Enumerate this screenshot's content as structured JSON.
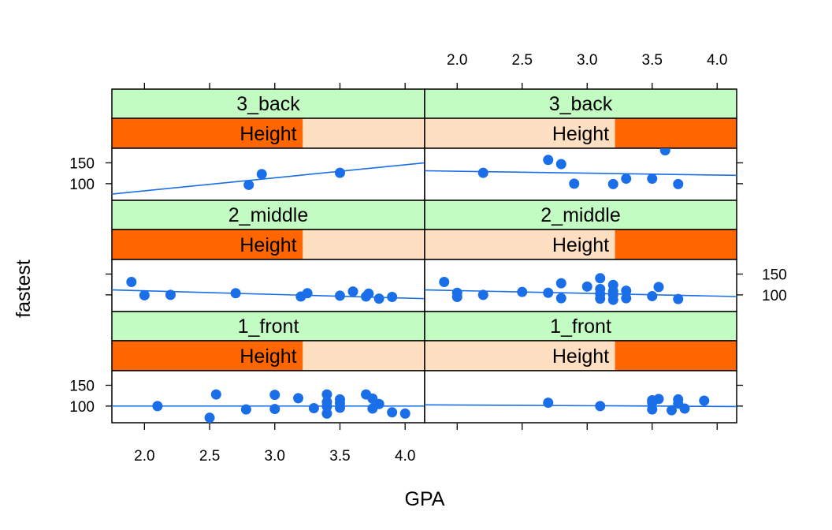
{
  "chart_data": {
    "type": "scatter",
    "xlabel": "GPA",
    "ylabel": "fastest",
    "xlim": [
      1.75,
      4.15
    ],
    "ylim": [
      60,
      185
    ],
    "x_ticks": [
      2.0,
      2.5,
      3.0,
      3.5,
      4.0
    ],
    "x_tick_labels": [
      "2.0",
      "2.5",
      "3.0",
      "3.5",
      "4.0"
    ],
    "y_ticks": [
      100,
      150
    ],
    "y_tick_labels": [
      "100",
      "150"
    ],
    "strip_var": "Height",
    "colors": {
      "points": "#1a6fe8",
      "line": "#1a6fe8",
      "strip_outer": "#c3fcc3",
      "strip_shingle_fill": "#ff6600",
      "strip_shingle_bg": "#ffdfc2"
    },
    "panels": [
      {
        "row": "3_back",
        "height_range": "low",
        "shingle_fraction": [
          0,
          0.61
        ],
        "points": [
          [
            2.8,
            97
          ],
          [
            2.9,
            123
          ],
          [
            3.5,
            126
          ]
        ],
        "fit": [
          [
            1.75,
            75
          ],
          [
            4.15,
            150
          ]
        ]
      },
      {
        "row": "3_back",
        "height_range": "high",
        "shingle_fraction": [
          0.61,
          1
        ],
        "points": [
          [
            2.2,
            126
          ],
          [
            2.7,
            157
          ],
          [
            2.8,
            147
          ],
          [
            2.9,
            100
          ],
          [
            3.2,
            99
          ],
          [
            3.3,
            112
          ],
          [
            3.5,
            112
          ],
          [
            3.6,
            180
          ],
          [
            3.7,
            99
          ]
        ],
        "fit": [
          [
            1.75,
            131
          ],
          [
            4.15,
            120
          ]
        ]
      },
      {
        "row": "2_middle",
        "height_range": "low",
        "shingle_fraction": [
          0,
          0.61
        ],
        "points": [
          [
            1.9,
            131
          ],
          [
            2.0,
            99
          ],
          [
            2.2,
            100
          ],
          [
            2.7,
            104
          ],
          [
            3.2,
            96
          ],
          [
            3.25,
            104
          ],
          [
            3.5,
            98
          ],
          [
            3.6,
            108
          ],
          [
            3.7,
            96
          ],
          [
            3.72,
            103
          ],
          [
            3.8,
            91
          ],
          [
            3.9,
            95
          ]
        ],
        "fit": [
          [
            1.75,
            112
          ],
          [
            4.15,
            91
          ]
        ]
      },
      {
        "row": "2_middle",
        "height_range": "high",
        "shingle_fraction": [
          0.61,
          1
        ],
        "points": [
          [
            1.9,
            131
          ],
          [
            2.0,
            105
          ],
          [
            2.0,
            95
          ],
          [
            2.2,
            100
          ],
          [
            2.5,
            107
          ],
          [
            2.7,
            105
          ],
          [
            2.8,
            128
          ],
          [
            2.8,
            92
          ],
          [
            3.0,
            120
          ],
          [
            3.1,
            140
          ],
          [
            3.1,
            114
          ],
          [
            3.1,
            102
          ],
          [
            3.1,
            91
          ],
          [
            3.2,
            124
          ],
          [
            3.2,
            109
          ],
          [
            3.2,
            100
          ],
          [
            3.2,
            88
          ],
          [
            3.3,
            110
          ],
          [
            3.3,
            92
          ],
          [
            3.5,
            97
          ],
          [
            3.55,
            119
          ],
          [
            3.7,
            90
          ]
        ],
        "fit": [
          [
            1.75,
            112
          ],
          [
            4.15,
            96
          ]
        ]
      },
      {
        "row": "1_front",
        "height_range": "low",
        "shingle_fraction": [
          0,
          0.61
        ],
        "points": [
          [
            2.1,
            100
          ],
          [
            2.5,
            72
          ],
          [
            2.55,
            128
          ],
          [
            2.78,
            92
          ],
          [
            3.0,
            127
          ],
          [
            3.0,
            93
          ],
          [
            3.18,
            119
          ],
          [
            3.3,
            95
          ],
          [
            3.4,
            128
          ],
          [
            3.4,
            110
          ],
          [
            3.4,
            99
          ],
          [
            3.4,
            82
          ],
          [
            3.5,
            116
          ],
          [
            3.5,
            107
          ],
          [
            3.5,
            96
          ],
          [
            3.7,
            128
          ],
          [
            3.75,
            118
          ],
          [
            3.75,
            94
          ],
          [
            3.8,
            105
          ],
          [
            3.9,
            85
          ],
          [
            4.0,
            82
          ]
        ],
        "fit": [
          [
            1.75,
            100
          ],
          [
            4.15,
            100
          ]
        ]
      },
      {
        "row": "1_front",
        "height_range": "high",
        "shingle_fraction": [
          0.61,
          1
        ],
        "points": [
          [
            2.7,
            108
          ],
          [
            3.1,
            100
          ],
          [
            3.5,
            114
          ],
          [
            3.5,
            108
          ],
          [
            3.5,
            92
          ],
          [
            3.55,
            117
          ],
          [
            3.65,
            90
          ],
          [
            3.7,
            116
          ],
          [
            3.7,
            106
          ],
          [
            3.75,
            94
          ],
          [
            3.9,
            113
          ]
        ],
        "fit": [
          [
            1.75,
            103
          ],
          [
            4.15,
            99
          ]
        ]
      }
    ]
  }
}
